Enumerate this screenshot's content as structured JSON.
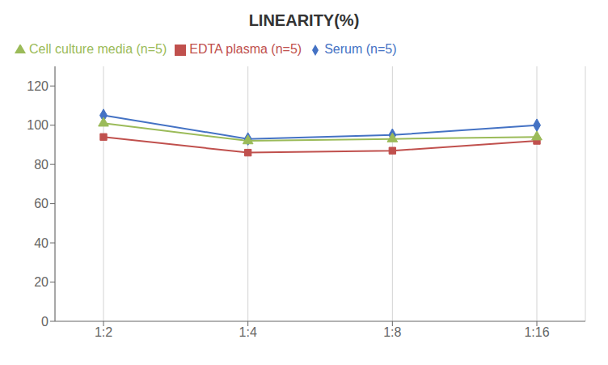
{
  "chart_data": {
    "type": "line",
    "title": "LINEARITY(%)",
    "categories": [
      "1:2",
      "1:4",
      "1:8",
      "1:16"
    ],
    "series": [
      {
        "name": "Serum (n=5)",
        "color": "#4472C4",
        "marker": "diamond",
        "values": [
          105,
          93,
          95,
          100
        ]
      },
      {
        "name": "EDTA plasma (n=5)",
        "color": "#C0504D",
        "marker": "square",
        "values": [
          94,
          86,
          87,
          92
        ]
      },
      {
        "name": "Cell culture media (n=5)",
        "color": "#9BBB59",
        "marker": "triangle",
        "values": [
          101,
          92,
          93,
          94
        ]
      }
    ],
    "ylim": [
      0,
      130
    ],
    "yticks": [
      0,
      20,
      40,
      60,
      80,
      100,
      120
    ],
    "grid": "x",
    "legend": "top"
  }
}
